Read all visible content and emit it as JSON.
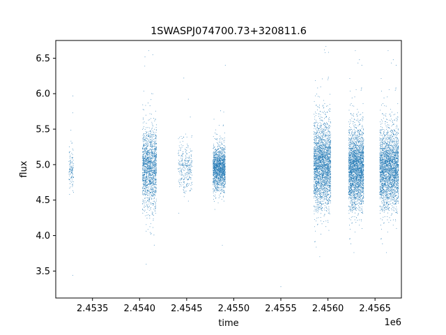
{
  "chart_data": {
    "type": "scatter",
    "title": "1SWASPJ074700.73+320811.6",
    "xlabel": "time",
    "ylabel": "flux",
    "x_offset_label": "1e6",
    "xlim": [
      2.45311,
      2.45678
    ],
    "ylim": [
      3.12,
      6.75
    ],
    "x_ticks": [
      2.4535,
      2.454,
      2.4545,
      2.455,
      2.4555,
      2.456,
      2.4565
    ],
    "x_tick_labels": [
      "2.4535",
      "2.4540",
      "2.4545",
      "2.4550",
      "2.4555",
      "2.4560",
      "2.4565"
    ],
    "y_ticks": [
      3.5,
      4.0,
      4.5,
      5.0,
      5.5,
      6.0,
      6.5
    ],
    "y_tick_labels": [
      "3.5",
      "4.0",
      "4.5",
      "5.0",
      "5.5",
      "6.0",
      "6.5"
    ],
    "grid": false,
    "marker_color": "#1f77b4",
    "observing_seasons": [
      {
        "x_range": [
          2.45325,
          2.4533
        ],
        "y_center": 4.95,
        "y_spread": 0.3,
        "points": 120
      },
      {
        "x_range": [
          2.45403,
          2.45418
        ],
        "y_center": 4.95,
        "y_spread": 0.55,
        "points": 1500
      },
      {
        "x_range": [
          2.45441,
          2.45456
        ],
        "y_center": 4.95,
        "y_spread": 0.35,
        "points": 300
      },
      {
        "x_range": [
          2.45478,
          2.45491
        ],
        "y_center": 4.95,
        "y_spread": 0.3,
        "points": 1500
      },
      {
        "x_range": [
          2.45585,
          2.45603
        ],
        "y_center": 5.0,
        "y_spread": 0.6,
        "points": 2500
      },
      {
        "x_range": [
          2.45622,
          2.45638
        ],
        "y_center": 4.95,
        "y_spread": 0.55,
        "points": 2600
      },
      {
        "x_range": [
          2.45655,
          2.45675
        ],
        "y_center": 4.95,
        "y_spread": 0.55,
        "points": 2600
      }
    ],
    "outliers": [
      {
        "x": 2.45329,
        "y": 5.73
      },
      {
        "x": 2.45329,
        "y": 3.44
      },
      {
        "x": 2.4555,
        "y": 3.28
      },
      {
        "x": 2.45414,
        "y": 6.55
      },
      {
        "x": 2.45447,
        "y": 6.22
      },
      {
        "x": 2.45491,
        "y": 6.4
      },
      {
        "x": 2.45597,
        "y": 6.58
      }
    ]
  }
}
